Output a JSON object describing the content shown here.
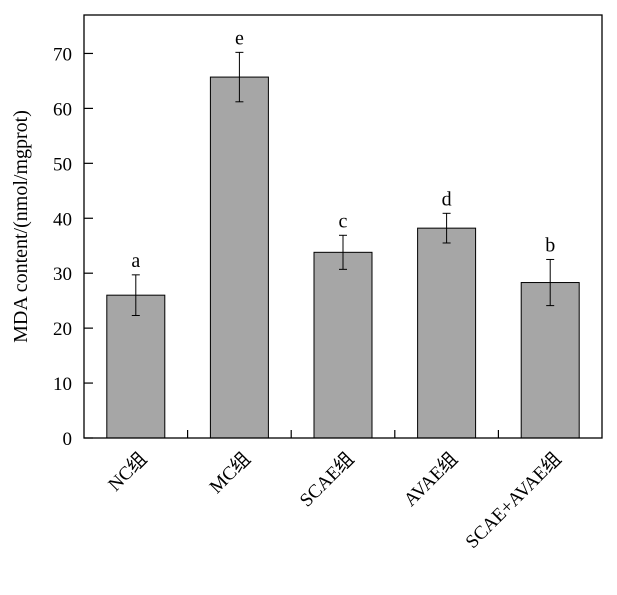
{
  "chart_data": {
    "type": "bar",
    "title": "",
    "xlabel": "",
    "ylabel": "MDA content/(nmol/mgprot)",
    "ylim": [
      0,
      77
    ],
    "yticks": [
      0,
      10,
      20,
      30,
      40,
      50,
      60,
      70
    ],
    "categories": [
      "NC组",
      "MC组",
      "SCAE组",
      "AVAE组",
      "SCAE+AVAE组"
    ],
    "values": [
      26.0,
      65.7,
      33.8,
      38.2,
      28.3
    ],
    "errors": [
      3.7,
      4.5,
      3.1,
      2.7,
      4.2
    ],
    "significance": [
      "a",
      "e",
      "c",
      "d",
      "b"
    ],
    "bar_color": "#a6a6a6",
    "grid": false,
    "legend": "none"
  }
}
